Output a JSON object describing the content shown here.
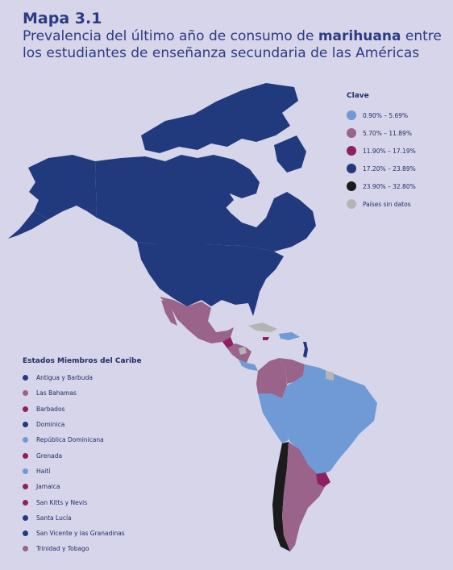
{
  "header": {
    "map_label": "Mapa 3.1",
    "subtitle_before": "Prevalencia del último año de consumo de ",
    "subtitle_bold": "marihuana",
    "subtitle_after": " entre los estudiantes de enseñanza secundaria de las Américas"
  },
  "legend": {
    "title": "Clave",
    "items": [
      {
        "label": "0.90% – 5.69%",
        "color": "#6f9ad6"
      },
      {
        "label": "5.70% – 11.89%",
        "color": "#9a6389"
      },
      {
        "label": "11.90% – 17.19%",
        "color": "#8e1f62"
      },
      {
        "label": "17.20% – 23.89%",
        "color": "#213a7d"
      },
      {
        "label": "23.90% – 32.80%",
        "color": "#1b1b1b"
      },
      {
        "label": "Países sin datos",
        "color": "#b4b4b4"
      }
    ]
  },
  "caribbean": {
    "title": "Estados Miembros del Caribe",
    "items": [
      {
        "label": "Antigua y Barbuda",
        "color": "#213a7d"
      },
      {
        "label": "Las Bahamas",
        "color": "#9a6389"
      },
      {
        "label": "Barbados",
        "color": "#8e1f62"
      },
      {
        "label": "Dominica",
        "color": "#213a7d"
      },
      {
        "label": "República Dominicana",
        "color": "#6f9ad6"
      },
      {
        "label": "Grenada",
        "color": "#8e1f62"
      },
      {
        "label": "Haití",
        "color": "#6f9ad6"
      },
      {
        "label": "Jamaica",
        "color": "#8e1f62"
      },
      {
        "label": "San Kitts y Nevis",
        "color": "#8e1f62"
      },
      {
        "label": "Santa Lucía",
        "color": "#213a7d"
      },
      {
        "label": "San Vicente y las Granadinas",
        "color": "#213a7d"
      },
      {
        "label": "Trinidad y Tobago",
        "color": "#9a6389"
      }
    ]
  },
  "map_colors": {
    "north_america": "#213a7d",
    "mexico": "#9a6389",
    "central_america_purple": "#8e1f62",
    "central_america_mauve": "#9a6389",
    "central_america_light": "#6f9ad6",
    "south_america_main": "#6f9ad6",
    "colombia_venezuela": "#9a6389",
    "argentina": "#9a6389",
    "chile": "#1b1b1b",
    "uruguay": "#8e1f62",
    "no_data": "#b4b4b4",
    "caribbean_islands": "#213a7d"
  }
}
